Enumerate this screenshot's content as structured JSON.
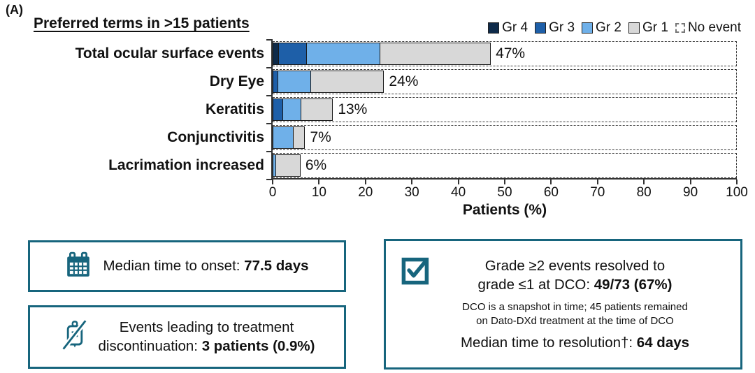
{
  "panel_label": "(A)",
  "colors": {
    "accent_teal": "#17657D",
    "axis": "#333333",
    "bar_border": "#1a1a1a",
    "gr4_navy": "#0e2a49",
    "gr3_blue": "#1e5fa8",
    "gr2_lightblue": "#6fb0e9",
    "gr1_gray": "#d8d8d8"
  },
  "chart_data": {
    "type": "bar",
    "stacked": true,
    "orientation": "horizontal",
    "title": "Preferred terms in >15 patients",
    "legend_position": "top-right",
    "categories": [
      "Total ocular surface events",
      "Dry Eye",
      "Keratitis",
      "Conjunctivitis",
      "Lacrimation increased"
    ],
    "series": [
      {
        "name": "Gr 4",
        "color": "#0e2a49",
        "values": [
          1,
          0,
          0,
          0,
          0
        ]
      },
      {
        "name": "Gr 3",
        "color": "#1e5fa8",
        "values": [
          6,
          1,
          2,
          0,
          0
        ]
      },
      {
        "name": "Gr 2",
        "color": "#6fb0e9",
        "values": [
          16,
          7,
          4,
          4.5,
          0.5
        ]
      },
      {
        "name": "Gr 1",
        "color": "#d8d8d8",
        "values": [
          24,
          16,
          7,
          2.5,
          5.5
        ]
      },
      {
        "name": "No event",
        "color": "#ffffff",
        "style": "dashed-outline",
        "values": null
      }
    ],
    "bar_total_labels": [
      "47%",
      "24%",
      "13%",
      "7%",
      "6%"
    ],
    "xlabel": "Patients (%)",
    "xlim": [
      0,
      100
    ],
    "xticks": [
      0,
      10,
      20,
      30,
      40,
      50,
      60,
      70,
      80,
      90,
      100
    ],
    "grid": false
  },
  "callouts": {
    "onset": {
      "icon": "calendar-icon",
      "prefix": "Median time to onset: ",
      "value": "77.5 days"
    },
    "discontinuation": {
      "icon": "iv-bag-crossed-icon",
      "line1": "Events leading to treatment",
      "line2_prefix": "discontinuation: ",
      "line2_value": "3 patients (0.9%)"
    },
    "resolution": {
      "icon": "checkbox-checked-icon",
      "line1": "Grade ≥2 events resolved to",
      "line2_prefix": "grade ≤1 at DCO: ",
      "line2_value": "49/73 (67%)",
      "note_line1": "DCO is a snapshot in time; 45 patients remained",
      "note_line2": "on Dato-DXd treatment at the time of DCO",
      "line3_prefix": "Median time to resolution†: ",
      "line3_value": "64 days"
    }
  }
}
